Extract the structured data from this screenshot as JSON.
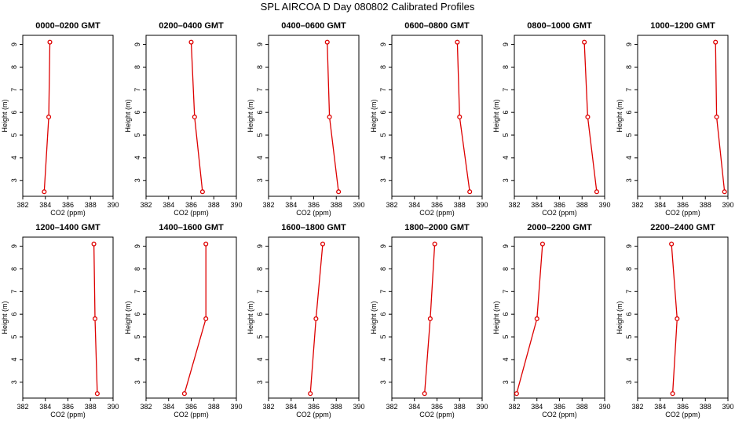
{
  "title": "SPL AIRCOA D  Day 080802  Calibrated Profiles",
  "colors": {
    "series": "#dd0000",
    "axis": "#000000",
    "background": "#ffffff"
  },
  "chart_data": {
    "type": "line",
    "xlabel": "CO2 (ppm)",
    "ylabel": "Height (m)",
    "xlim": [
      382,
      390
    ],
    "ylim": [
      2.3,
      9.4
    ],
    "xticks": [
      382,
      384,
      386,
      388,
      390
    ],
    "yticks": [
      3,
      4,
      5,
      6,
      7,
      8,
      9
    ],
    "heights": [
      2.5,
      5.8,
      9.1
    ],
    "grid": false,
    "panels": [
      {
        "title": "0000–0200 GMT",
        "co2": [
          383.9,
          384.3,
          384.4
        ]
      },
      {
        "title": "0200–0400 GMT",
        "co2": [
          387.0,
          386.3,
          386.0
        ]
      },
      {
        "title": "0400–0600 GMT",
        "co2": [
          388.2,
          387.4,
          387.2
        ]
      },
      {
        "title": "0600–0800 GMT",
        "co2": [
          388.9,
          388.0,
          387.8
        ]
      },
      {
        "title": "0800–1000 GMT",
        "co2": [
          389.3,
          388.5,
          388.2
        ]
      },
      {
        "title": "1000–1200 GMT",
        "co2": [
          389.7,
          389.0,
          388.9
        ]
      },
      {
        "title": "1200–1400 GMT",
        "co2": [
          388.6,
          388.4,
          388.3
        ]
      },
      {
        "title": "1400–1600 GMT",
        "co2": [
          385.4,
          387.3,
          387.3
        ]
      },
      {
        "title": "1600–1800 GMT",
        "co2": [
          385.7,
          386.2,
          386.8
        ]
      },
      {
        "title": "1800–2000 GMT",
        "co2": [
          384.9,
          385.4,
          385.8
        ]
      },
      {
        "title": "2000–2200 GMT",
        "co2": [
          382.2,
          384.0,
          384.5
        ]
      },
      {
        "title": "2200–2400 GMT",
        "co2": [
          385.1,
          385.5,
          385.0
        ]
      }
    ]
  }
}
